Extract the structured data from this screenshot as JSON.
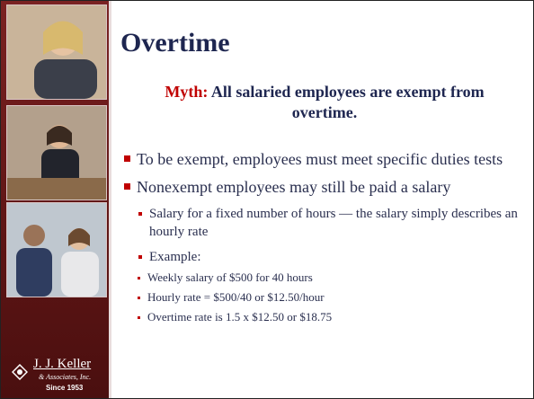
{
  "sidebar": {
    "logo": {
      "name": "J. J. Keller",
      "subtitle": "& Associates, Inc.",
      "since": "Since 1953"
    }
  },
  "slide": {
    "title": "Overtime",
    "myth": {
      "label": "Myth:",
      "text": "All salaried employees are exempt from overtime."
    },
    "bullets": [
      {
        "text": "To be exempt, employees must meet specific duties tests"
      },
      {
        "text": "Nonexempt employees may still be paid a salary",
        "items": [
          {
            "text": "Salary for a fixed number of hours — the salary simply describes an hourly rate"
          },
          {
            "text": "Example:",
            "items": [
              "Weekly salary of $500 for 40 hours",
              "Hourly rate = $500/40 or $12.50/hour",
              "Overtime rate is 1.5 x $12.50 or $18.75"
            ]
          }
        ]
      }
    ]
  }
}
